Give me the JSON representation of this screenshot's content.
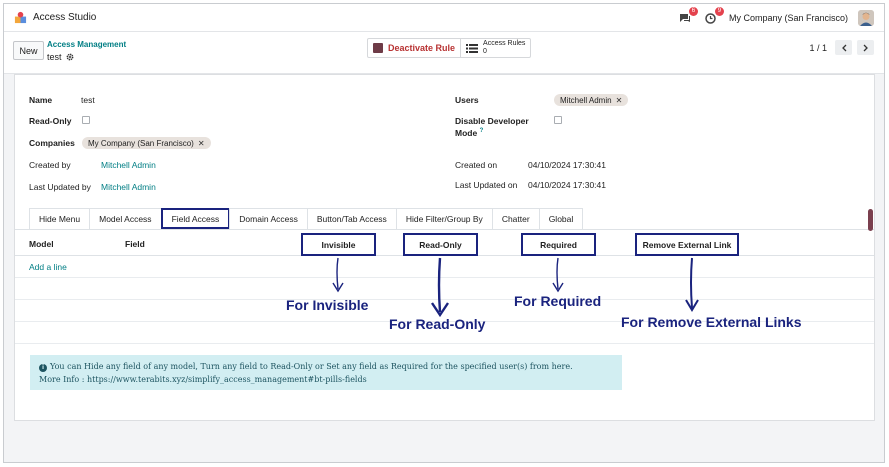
{
  "app": {
    "name": "Access Studio",
    "icon": "puzzle-icon"
  },
  "navbar": {
    "messages_count": "6",
    "activity_count": "9",
    "company": "My Company (San Francisco)"
  },
  "control_panel": {
    "new_label": "New",
    "breadcrumb_parent": "Access Management",
    "breadcrumb_current": "test",
    "deactivate_label": "Deactivate Rule",
    "access_rules_label": "Access Rules",
    "access_rules_count": "0",
    "pager": "1 / 1"
  },
  "form": {
    "name_label": "Name",
    "name_value": "test",
    "readonly_label": "Read-Only",
    "companies_label": "Companies",
    "companies_tag": "My Company (San Francisco)",
    "created_by_label": "Created by",
    "created_by_value": "Mitchell Admin",
    "last_updated_by_label": "Last Updated by",
    "last_updated_by_value": "Mitchell Admin",
    "users_label": "Users",
    "users_tag": "Mitchell Admin",
    "disable_dev_label_1": "Disable Developer",
    "disable_dev_label_2": "Mode",
    "disable_dev_help": "?",
    "created_on_label": "Created on",
    "created_on_value": "04/10/2024 17:30:41",
    "last_updated_on_label": "Last Updated on",
    "last_updated_on_value": "04/10/2024 17:30:41"
  },
  "tabs": [
    "Hide Menu",
    "Model Access",
    "Field Access",
    "Domain Access",
    "Button/Tab Access",
    "Hide Filter/Group By",
    "Chatter",
    "Global"
  ],
  "active_tab": "Field Access",
  "table": {
    "columns": [
      "Model",
      "Field",
      "Invisible",
      "Read-Only",
      "Required",
      "Remove External Link"
    ],
    "add_line": "Add a line"
  },
  "annotations": {
    "invisible": "For Invisible",
    "readonly": "For Read-Only",
    "required": "For Required",
    "remove_links": "For Remove External Links",
    "color": "#1a237e"
  },
  "alert": {
    "line1": "You can Hide any field of any model, Turn any field to Read-Only or Set any field as Required for the specified user(s) from here.",
    "line2": "More Info : https://www.terabits.xyz/simplify_access_management#bt-pills-fields"
  },
  "colors": {
    "accent": "#017e84",
    "brand": "#714b67",
    "annotation": "#1a237e",
    "alert_bg": "#d2eef2"
  }
}
